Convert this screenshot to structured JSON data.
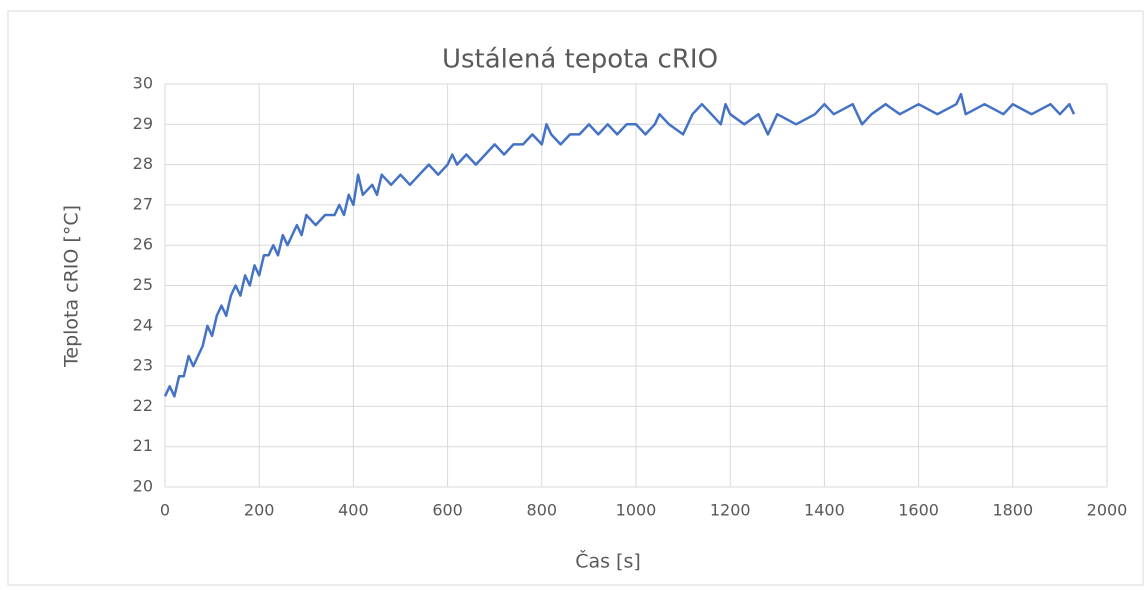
{
  "chart_data": {
    "type": "line",
    "title": "Ustálená tepota cRIO",
    "x_label": "Čas [s]",
    "y_label": "Teplota cRIO [°C]",
    "x": [
      0,
      10,
      20,
      30,
      40,
      50,
      60,
      70,
      80,
      90,
      100,
      110,
      120,
      130,
      140,
      150,
      160,
      170,
      180,
      190,
      200,
      210,
      220,
      230,
      240,
      250,
      260,
      270,
      280,
      290,
      300,
      320,
      340,
      360,
      370,
      380,
      390,
      400,
      410,
      420,
      440,
      450,
      460,
      480,
      500,
      520,
      540,
      560,
      580,
      600,
      610,
      620,
      640,
      660,
      680,
      700,
      720,
      740,
      760,
      780,
      800,
      810,
      820,
      840,
      860,
      880,
      900,
      920,
      940,
      960,
      980,
      1000,
      1020,
      1040,
      1050,
      1070,
      1100,
      1120,
      1140,
      1160,
      1180,
      1190,
      1200,
      1230,
      1260,
      1280,
      1300,
      1340,
      1380,
      1400,
      1420,
      1460,
      1480,
      1500,
      1530,
      1560,
      1600,
      1640,
      1680,
      1690,
      1700,
      1740,
      1780,
      1800,
      1840,
      1880,
      1900,
      1920,
      1930
    ],
    "series": [
      {
        "name": "Teplota cRIO",
        "color": "#4472c4",
        "values": [
          22.25,
          22.5,
          22.25,
          22.75,
          22.75,
          23.25,
          23.0,
          23.25,
          23.5,
          24.0,
          23.75,
          24.25,
          24.5,
          24.25,
          24.75,
          25.0,
          24.75,
          25.25,
          25.0,
          25.5,
          25.25,
          25.75,
          25.75,
          26.0,
          25.75,
          26.25,
          26.0,
          26.25,
          26.5,
          26.25,
          26.75,
          26.5,
          26.75,
          26.75,
          27.0,
          26.75,
          27.25,
          27.0,
          27.75,
          27.25,
          27.5,
          27.25,
          27.75,
          27.5,
          27.75,
          27.5,
          27.75,
          28.0,
          27.75,
          28.0,
          28.25,
          28.0,
          28.25,
          28.0,
          28.25,
          28.5,
          28.25,
          28.5,
          28.5,
          28.75,
          28.5,
          29.0,
          28.75,
          28.5,
          28.75,
          28.75,
          29.0,
          28.75,
          29.0,
          28.75,
          29.0,
          29.0,
          28.75,
          29.0,
          29.25,
          29.0,
          28.75,
          29.25,
          29.5,
          29.25,
          29.0,
          29.5,
          29.25,
          29.0,
          29.25,
          28.75,
          29.25,
          29.0,
          29.25,
          29.5,
          29.25,
          29.5,
          29.0,
          29.25,
          29.5,
          29.25,
          29.5,
          29.25,
          29.5,
          29.75,
          29.25,
          29.5,
          29.25,
          29.5,
          29.25,
          29.5,
          29.25,
          29.5,
          29.25
        ]
      }
    ],
    "xlim": [
      0,
      2000
    ],
    "xticks": [
      0,
      200,
      400,
      600,
      800,
      1000,
      1200,
      1400,
      1600,
      1800,
      2000
    ],
    "ylim": [
      20,
      30
    ],
    "yticks": [
      20,
      21,
      22,
      23,
      24,
      25,
      26,
      27,
      28,
      29,
      30
    ],
    "grid": true
  }
}
